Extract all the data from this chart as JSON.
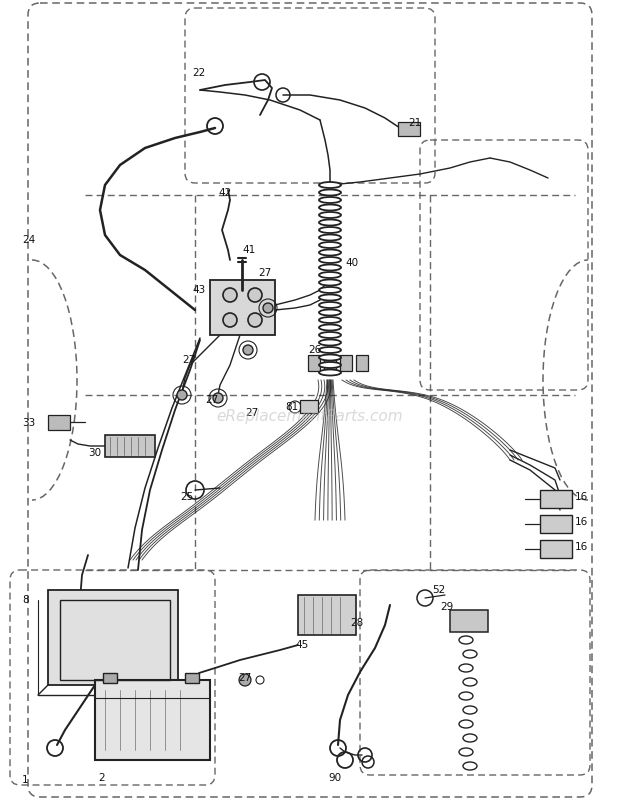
{
  "bg_color": "#ffffff",
  "diagram_color": "#222222",
  "dashed_color": "#666666",
  "watermark": "eReplacementParts.com",
  "watermark_color": "#bbbbbb",
  "fig_width": 6.2,
  "fig_height": 8.0,
  "dpi": 100
}
